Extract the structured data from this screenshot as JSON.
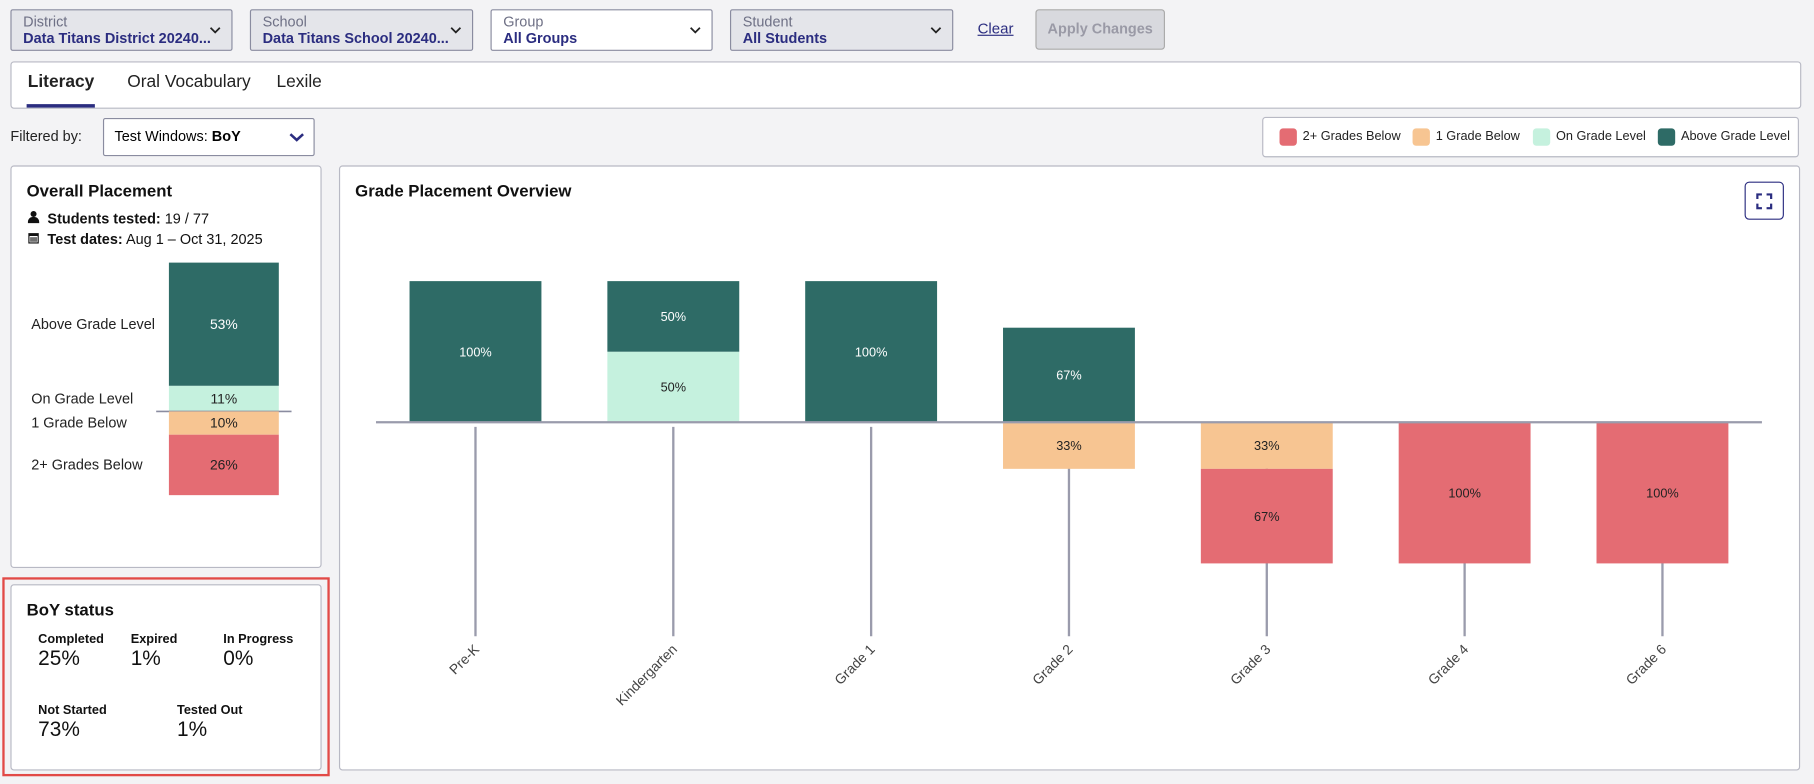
{
  "filters": {
    "district": {
      "label": "District",
      "value": "Data Titans District 20240..."
    },
    "school": {
      "label": "School",
      "value": "Data Titans School 20240..."
    },
    "group": {
      "label": "Group",
      "value": "All Groups"
    },
    "student": {
      "label": "Student",
      "value": "All Students"
    },
    "clear": "Clear",
    "apply": "Apply Changes"
  },
  "tabs": [
    "Literacy",
    "Oral Vocabulary",
    "Lexile"
  ],
  "filtered_by": {
    "label": "Filtered by:",
    "prefix": "Test Windows:",
    "value": "BoY"
  },
  "overall_placement": {
    "type": "bar",
    "title": "Overall Placement",
    "students_tested_label": "Students tested:",
    "students_tested": "19 / 77",
    "test_dates_label": "Test dates:",
    "test_dates": "Aug 1 – Oct 31, 2025",
    "categories": [
      "Above Grade Level",
      "On Grade Level",
      "1 Grade Below",
      "2+ Grades Below"
    ],
    "values": [
      53,
      11,
      10,
      26
    ],
    "value_labels": [
      "53%",
      "11%",
      "10%",
      "26%"
    ],
    "colors": [
      "#2e6b66",
      "#c5f1de",
      "#f7c592",
      "#e46c73"
    ],
    "ylim": [
      0,
      100
    ]
  },
  "status": {
    "title": "BoY status",
    "items": [
      {
        "label": "Completed",
        "value": "25%"
      },
      {
        "label": "Expired",
        "value": "1%"
      },
      {
        "label": "In Progress",
        "value": "0%"
      },
      {
        "label": "Not Started",
        "value": "73%"
      },
      {
        "label": "Tested Out",
        "value": "1%"
      }
    ]
  },
  "grade_placement": {
    "type": "bar",
    "title": "Grade Placement Overview",
    "categories": [
      "Pre-K",
      "Kindergarten",
      "Grade 1",
      "Grade 2",
      "Grade 3",
      "Grade 4",
      "Grade 6"
    ],
    "ylim": [
      -100,
      100
    ],
    "series": [
      {
        "name": "2+ Grades Below",
        "color": "#e46c73",
        "placement": "below",
        "values": [
          null,
          null,
          null,
          null,
          67,
          100,
          100
        ],
        "value_labels": [
          null,
          null,
          null,
          null,
          "67%",
          "100%",
          "100%"
        ]
      },
      {
        "name": "1 Grade Below",
        "color": "#f7c592",
        "placement": "below",
        "values": [
          null,
          null,
          null,
          33,
          33,
          null,
          null
        ],
        "value_labels": [
          null,
          null,
          null,
          "33%",
          "33%",
          null,
          null
        ]
      },
      {
        "name": "On Grade Level",
        "color": "#c5f1de",
        "placement": "above",
        "values": [
          null,
          50,
          null,
          null,
          null,
          null,
          null
        ],
        "value_labels": [
          null,
          "50%",
          null,
          null,
          null,
          null,
          null
        ]
      },
      {
        "name": "Above Grade Level",
        "color": "#2e6b66",
        "placement": "above",
        "values": [
          100,
          50,
          100,
          67,
          null,
          null,
          null
        ],
        "value_labels": [
          "100%",
          "50%",
          "100%",
          "67%",
          null,
          null,
          null
        ]
      }
    ]
  }
}
